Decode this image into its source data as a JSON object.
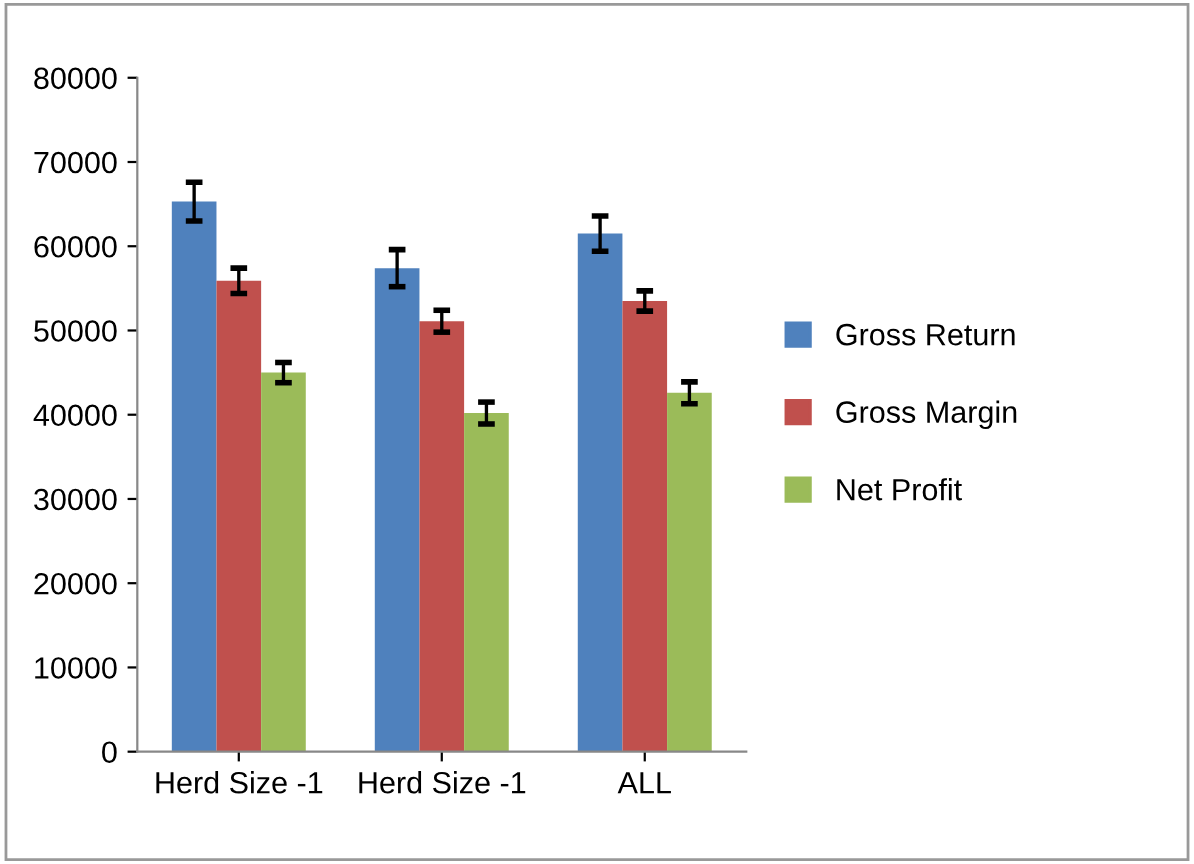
{
  "chart_data": {
    "type": "bar",
    "categories": [
      "Herd Size -1",
      "Herd Size -1",
      "ALL"
    ],
    "series": [
      {
        "name": "Gross Return",
        "color": "#4f81bd",
        "values": [
          65300,
          57400,
          61500
        ],
        "errors": [
          2300,
          2200,
          2100
        ]
      },
      {
        "name": "Gross Margin",
        "color": "#c0504d",
        "values": [
          55900,
          51100,
          53500
        ],
        "errors": [
          1500,
          1300,
          1200
        ]
      },
      {
        "name": "Net Profit",
        "color": "#9bbb59",
        "values": [
          45000,
          40200,
          42600
        ],
        "errors": [
          1200,
          1300,
          1300
        ]
      }
    ],
    "ylim": [
      0,
      80000
    ],
    "yticks": [
      0,
      10000,
      20000,
      30000,
      40000,
      50000,
      60000,
      70000,
      80000
    ],
    "grid": false,
    "legend": "right"
  }
}
